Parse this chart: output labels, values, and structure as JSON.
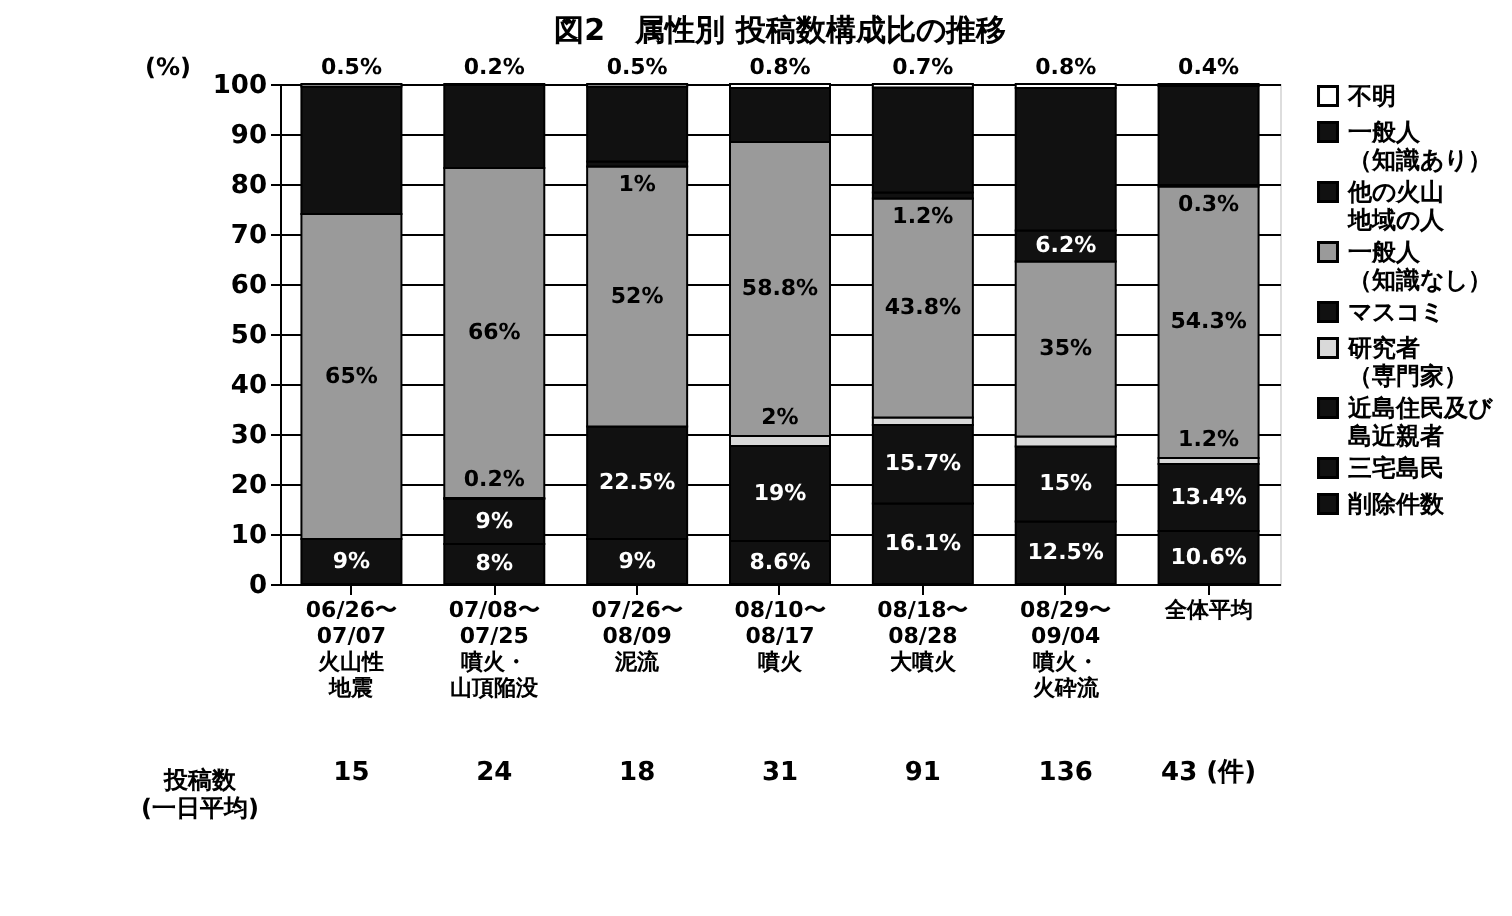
{
  "chart_data": {
    "type": "bar",
    "stacked": true,
    "title": "図2　属性別 投稿数構成比の推移",
    "ylabel": "(%)",
    "categories": [
      "06/26〜\n07/07\n火山性地震",
      "07/08〜\n07/25\n噴火・山頂陥没",
      "07/26〜\n08/09\n泥流",
      "08/10〜\n08/17\n噴火",
      "08/18〜\n08/28\n大噴火",
      "08/29〜\n09/04\n噴火・火砕流",
      "全体平均"
    ],
    "ylim": [
      0,
      100
    ],
    "yticks": [
      0,
      10,
      20,
      30,
      40,
      50,
      60,
      70,
      80,
      90,
      100
    ],
    "grid": "y",
    "legend": "right",
    "series": [
      {
        "name": "削除件数",
        "color": "#111111",
        "values": [
          null,
          null,
          null,
          null,
          null,
          null,
          null
        ]
      },
      {
        "name": "三宅島民",
        "color": "#111111",
        "values": [
          9,
          8,
          9,
          8.6,
          16.1,
          12.5,
          10.6
        ],
        "value_labels": [
          "9%",
          "8%",
          "9%",
          "8.6%",
          "16.1%",
          "12.5%",
          "10.6%"
        ]
      },
      {
        "name": "近島住民及び島近親者",
        "color": "#111111",
        "values": [
          null,
          9,
          22.5,
          19,
          15.7,
          15,
          13.4
        ],
        "value_labels": [
          null,
          "9%",
          "22.5%",
          "19%",
          "15.7%",
          "15%",
          "13.4%"
        ]
      },
      {
        "name": "研究者（専門家）",
        "color": "#d9d9d9",
        "values": [
          null,
          0.2,
          null,
          2,
          1.5,
          2,
          1.2
        ],
        "value_labels": [
          null,
          "0.2%",
          null,
          "2%",
          null,
          null,
          "1.2%"
        ]
      },
      {
        "name": "マスコミ",
        "color": "#111111",
        "values": [
          null,
          null,
          null,
          null,
          null,
          null,
          null
        ]
      },
      {
        "name": "一般人（知識なし）",
        "color": "#9a9a9a",
        "values": [
          65,
          66,
          52,
          58.8,
          43.8,
          35,
          54.3
        ],
        "value_labels": [
          "65%",
          "66%",
          "52%",
          "58.8%",
          "43.8%",
          "35%",
          "54.3%"
        ]
      },
      {
        "name": "他の火山地域の人",
        "color": "#111111",
        "values": [
          null,
          null,
          1,
          null,
          1.2,
          6.2,
          0.3
        ],
        "value_labels": [
          null,
          null,
          "1%",
          null,
          "1.2%",
          "6.2%",
          "0.3%"
        ]
      },
      {
        "name": "一般人（知識あり）",
        "color": "#111111",
        "values": [
          25.5,
          16.6,
          15,
          10.8,
          21,
          28.5,
          19.8
        ]
      },
      {
        "name": "不明",
        "color": "#ffffff",
        "values": [
          0.5,
          0.2,
          0.5,
          0.8,
          0.7,
          0.8,
          0.4
        ],
        "value_labels": [
          "0.5%",
          "0.2%",
          "0.5%",
          "0.8%",
          "0.7%",
          "0.8%",
          "0.4%"
        ]
      }
    ],
    "annotations": [
      "投稿数\n(一日平均)",
      "15",
      "24",
      "18",
      "31",
      "91",
      "136",
      "43 (件)"
    ]
  }
}
